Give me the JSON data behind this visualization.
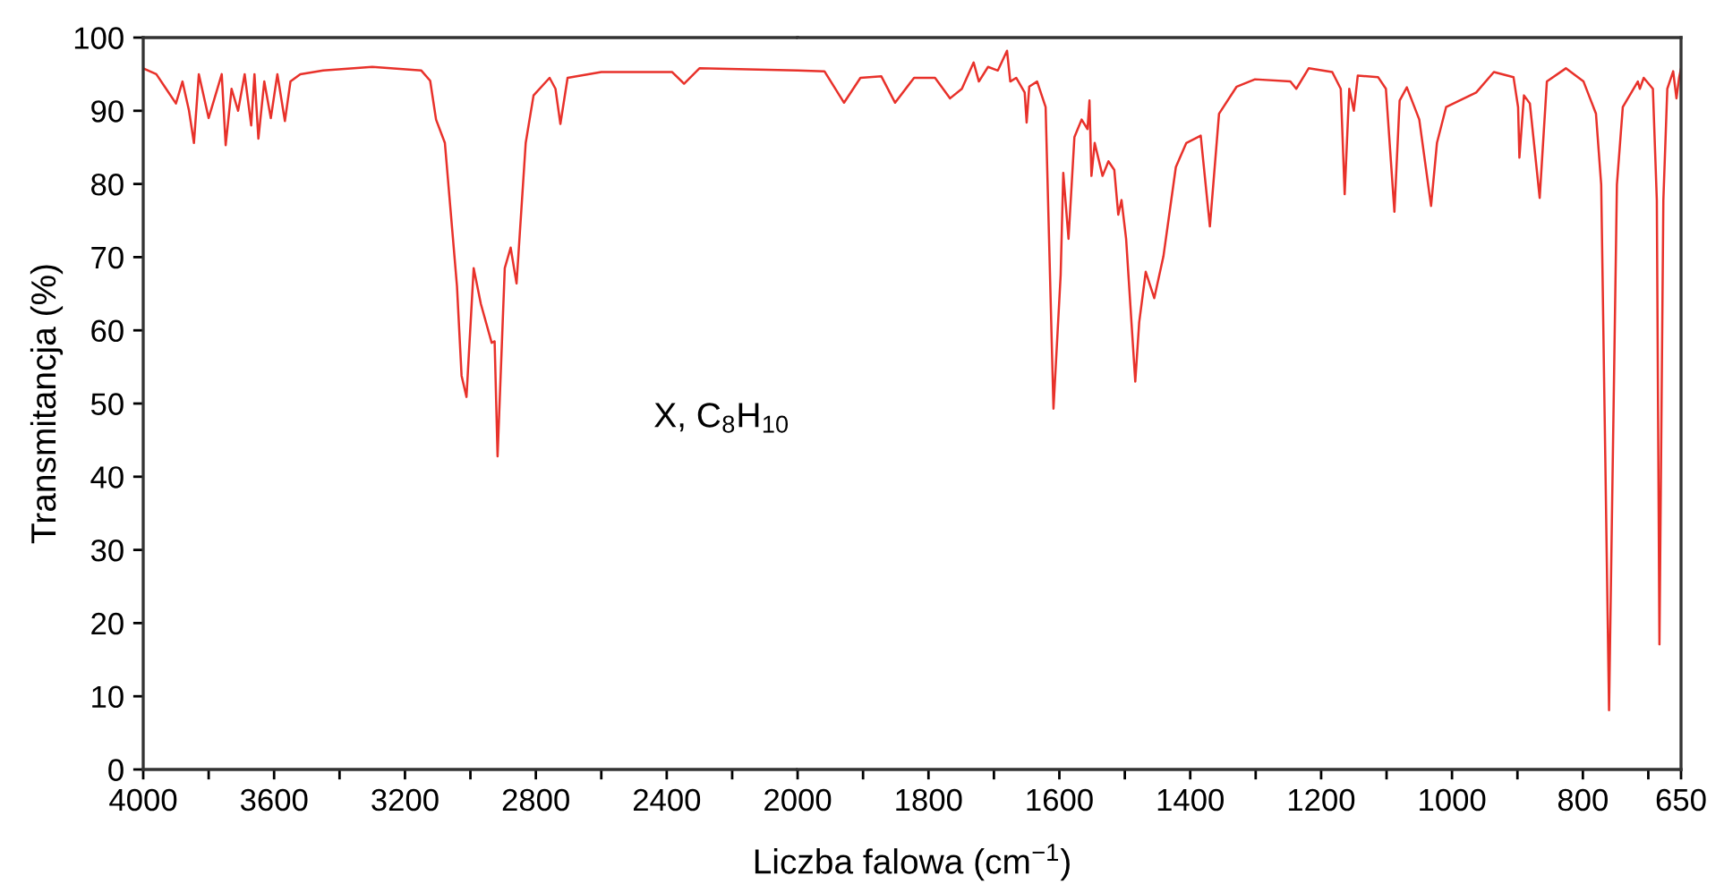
{
  "chart_data": [
    {
      "type": "line",
      "xlabel": "Liczba falowa (cm$^{−1}$)",
      "ylabel": "Transmitancja (%)",
      "annotations": [
        "X, C$_{8}$H$_{10}$"
      ],
      "xlim": [
        4000,
        2000
      ],
      "xticks": [
        4000,
        {
          "value": 3800,
          "label": null
        },
        3600,
        {
          "value": 3400,
          "label": null
        },
        3200,
        {
          "value": 3000,
          "label": null
        },
        2800,
        {
          "value": 2600,
          "label": null
        },
        2400,
        {
          "value": 2200,
          "label": null
        }
      ],
      "ylim": [
        0,
        100
      ],
      "yticks": [
        0,
        10,
        20,
        30,
        40,
        50,
        60,
        70,
        80,
        90,
        100
      ],
      "grid": false,
      "marker": "none",
      "line_style": "solid",
      "series": [
        {
          "color": "#e8312a",
          "x": [
            4000,
            3960,
            3930,
            3900,
            3880,
            3860,
            3845,
            3830,
            3800,
            3780,
            3760,
            3748,
            3730,
            3710,
            3690,
            3670,
            3660,
            3648,
            3630,
            3610,
            3590,
            3567,
            3550,
            3520,
            3450,
            3300,
            3150,
            3123,
            3105,
            3078,
            3041,
            3027,
            3012,
            2990,
            2968,
            2935,
            2926,
            2917,
            2895,
            2877,
            2859,
            2831,
            2807,
            2758,
            2740,
            2725,
            2703,
            2600,
            2384,
            2347,
            2300,
            2000
          ],
          "values": [
            95.8,
            95,
            93,
            91,
            94,
            90,
            85.6,
            95,
            89,
            92,
            95,
            85.3,
            93,
            90,
            95,
            88,
            95,
            86.2,
            94,
            89,
            95,
            88.6,
            94,
            95,
            95.5,
            96,
            95.5,
            94.1,
            88.8,
            85.6,
            66,
            53.8,
            50.9,
            68.5,
            63.6,
            58.3,
            58.5,
            42.8,
            68.5,
            71.3,
            66.4,
            85.6,
            92.1,
            94.5,
            93,
            88.2,
            94.5,
            95.3,
            95.3,
            93.7,
            95.8,
            95.5
          ]
        }
      ]
    },
    {
      "type": "line",
      "xlim": [
        2000,
        650
      ],
      "xticks": [
        2000,
        {
          "value": 1900,
          "label": null
        },
        1800,
        {
          "value": 1700,
          "label": null
        },
        1600,
        {
          "value": 1500,
          "label": null
        },
        1400,
        {
          "value": 1300,
          "label": null
        },
        1200,
        {
          "value": 1100,
          "label": null
        },
        1000,
        {
          "value": 900,
          "label": null
        },
        800,
        {
          "value": 700,
          "label": null
        },
        650
      ],
      "ylim": [
        0,
        100
      ],
      "yticks": [
        0,
        10,
        20,
        30,
        40,
        50,
        60,
        70,
        80,
        90,
        100
      ],
      "tick_labels": "x",
      "grid": false,
      "marker": "none",
      "line_style": "solid",
      "series": [
        {
          "color": "#e8312a",
          "x": [
            2000,
            1959,
            1929,
            1904,
            1872,
            1851,
            1822,
            1790,
            1767,
            1749,
            1731,
            1723,
            1709,
            1694,
            1680,
            1675,
            1666,
            1653,
            1650,
            1646,
            1634,
            1621,
            1609,
            1598,
            1594,
            1586,
            1577,
            1566,
            1557,
            1554,
            1551,
            1546,
            1534,
            1525,
            1516,
            1510,
            1505,
            1498,
            1484,
            1478,
            1468,
            1455,
            1441,
            1422,
            1406,
            1384,
            1370,
            1356,
            1329,
            1301,
            1247,
            1238,
            1219,
            1183,
            1170,
            1164,
            1157,
            1150,
            1144,
            1113,
            1101,
            1088,
            1080,
            1069,
            1050,
            1032,
            1023,
            1009,
            963,
            936,
            906,
            899,
            897,
            890,
            881,
            866,
            855,
            826,
            799,
            780,
            772,
            760,
            748,
            739,
            716,
            713,
            707,
            693,
            687,
            683,
            677,
            671,
            662,
            657,
            653,
            650
          ],
          "values": [
            95.5,
            95.4,
            91.1,
            94.5,
            94.7,
            91.1,
            94.5,
            94.5,
            91.7,
            93,
            96.6,
            94,
            96,
            95.5,
            98.2,
            94,
            94.5,
            92.5,
            88.4,
            93.3,
            94,
            90.5,
            49.3,
            67.6,
            81.5,
            72.5,
            86.4,
            88.8,
            87.5,
            91.4,
            81.1,
            85.6,
            81.1,
            83.1,
            81.9,
            75.8,
            77.8,
            72.5,
            53,
            61.1,
            68,
            64.4,
            70.1,
            82.3,
            85.6,
            86.6,
            74.2,
            89.6,
            93.3,
            94.3,
            94,
            93,
            95.8,
            95.3,
            93,
            78.6,
            93,
            90,
            94.8,
            94.6,
            93,
            76.2,
            91.4,
            93.2,
            88.8,
            77,
            85.6,
            90.5,
            92.5,
            95.3,
            94.6,
            90.5,
            83.6,
            92.1,
            91,
            78.1,
            94,
            95.8,
            94,
            89.6,
            79.9,
            8.1,
            79.9,
            90.5,
            94,
            93,
            94.5,
            93,
            77.8,
            17.1,
            77.8,
            93,
            95.4,
            91.7,
            94.5,
            95.8
          ]
        }
      ]
    }
  ]
}
